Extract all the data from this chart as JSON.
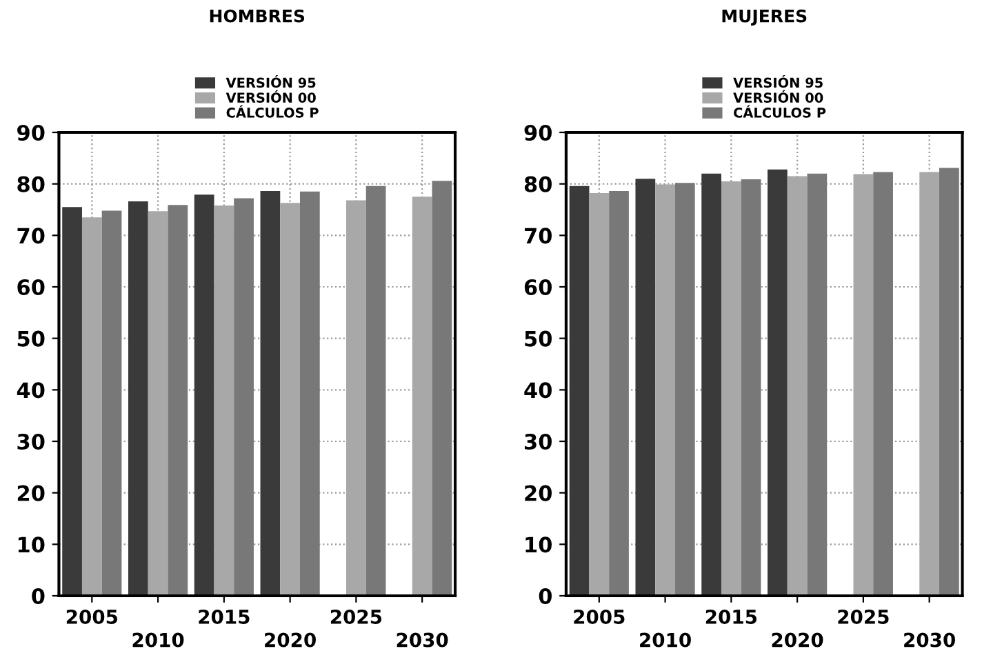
{
  "chart_data": [
    {
      "type": "bar",
      "title": "HOMBRES",
      "categories": [
        "2005",
        "2010",
        "2015",
        "2020",
        "2025",
        "2030"
      ],
      "series": [
        {
          "name": "VERSIÓN 95",
          "color": "#3a3a3a",
          "values": [
            75.5,
            76.6,
            77.9,
            78.6,
            null,
            null
          ]
        },
        {
          "name": "VERSIÓN 00",
          "color": "#a8a8a8",
          "values": [
            73.5,
            74.7,
            75.8,
            76.3,
            76.8,
            77.5
          ]
        },
        {
          "name": "CÁLCULOS P",
          "color": "#787878",
          "values": [
            74.8,
            75.9,
            77.2,
            78.5,
            79.6,
            80.6
          ]
        }
      ],
      "ylim": [
        0,
        90
      ],
      "yticks": [
        0,
        10,
        20,
        30,
        40,
        50,
        60,
        70,
        80,
        90
      ],
      "grid": true,
      "legend": "top"
    },
    {
      "type": "bar",
      "title": "MUJERES",
      "categories": [
        "2005",
        "2010",
        "2015",
        "2020",
        "2025",
        "2030"
      ],
      "series": [
        {
          "name": "VERSIÓN 95",
          "color": "#3a3a3a",
          "values": [
            79.6,
            81.0,
            82.0,
            82.8,
            null,
            null
          ]
        },
        {
          "name": "VERSIÓN 00",
          "color": "#a8a8a8",
          "values": [
            78.2,
            79.9,
            80.5,
            81.5,
            81.9,
            82.3
          ]
        },
        {
          "name": "CÁLCULOS P",
          "color": "#787878",
          "values": [
            78.6,
            80.2,
            80.9,
            82.0,
            82.3,
            83.1
          ]
        }
      ],
      "ylim": [
        0,
        90
      ],
      "yticks": [
        0,
        10,
        20,
        30,
        40,
        50,
        60,
        70,
        80,
        90
      ],
      "grid": true,
      "legend": "top"
    }
  ]
}
